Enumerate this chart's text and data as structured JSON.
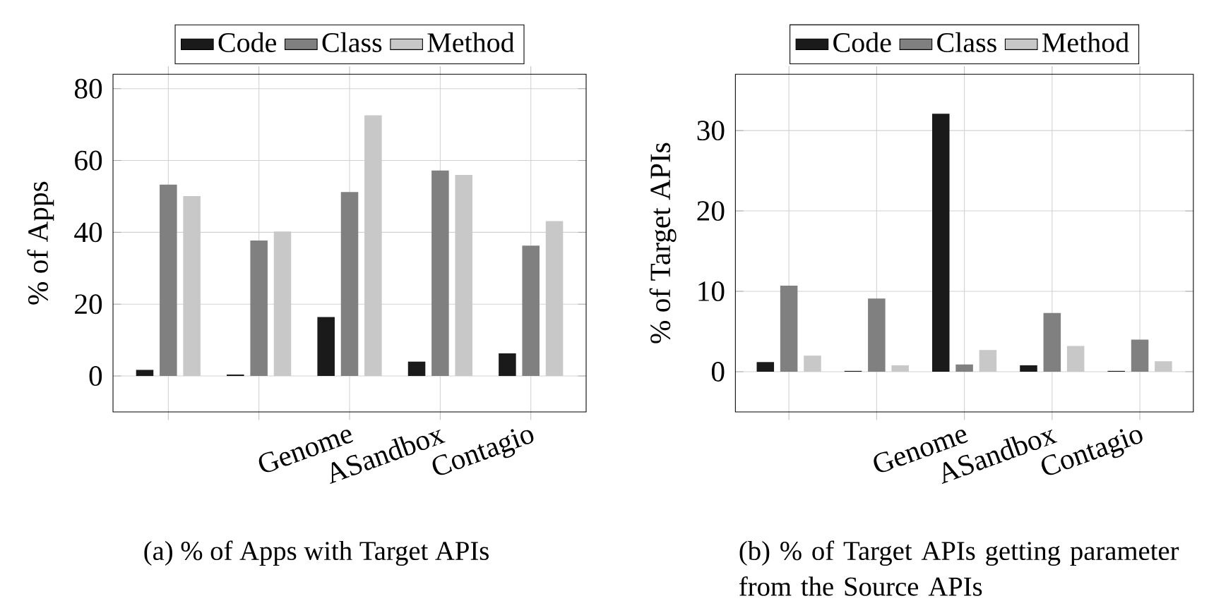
{
  "chart_data": [
    {
      "type": "bar",
      "categories": [
        null,
        null,
        "Genome",
        "ASandbox",
        "Contagio"
      ],
      "ylabel": "% of Apps",
      "ylim": [
        -10,
        84
      ],
      "yticks": [
        0,
        20,
        40,
        60,
        80
      ],
      "grid": true,
      "legend": "top",
      "annotations": [
        "(a) % of Apps with Target APIs"
      ],
      "series": [
        {
          "name": "Code",
          "color": "#1a1a1a",
          "values": [
            1.7,
            0.4,
            16.4,
            4.0,
            6.3
          ]
        },
        {
          "name": "Class",
          "color": "#808080",
          "values": [
            53.3,
            37.7,
            51.2,
            57.2,
            36.3
          ]
        },
        {
          "name": "Method",
          "color": "#c8c8c8",
          "values": [
            50.1,
            40.2,
            72.6,
            56.0,
            43.1
          ]
        }
      ]
    },
    {
      "type": "bar",
      "categories": [
        null,
        null,
        "Genome",
        "ASandbox",
        "Contagio"
      ],
      "ylabel": "% of Target APIs",
      "ylim": [
        -5,
        37
      ],
      "yticks": [
        0,
        10,
        20,
        30
      ],
      "grid": true,
      "legend": "top",
      "annotations": [
        "(b) % of Target APIs getting parameter from the Source APIs"
      ],
      "series": [
        {
          "name": "Code",
          "color": "#1a1a1a",
          "values": [
            1.2,
            0.1,
            32.1,
            0.8,
            0.1
          ]
        },
        {
          "name": "Class",
          "color": "#808080",
          "values": [
            10.7,
            9.1,
            0.9,
            7.3,
            4.0
          ]
        },
        {
          "name": "Method",
          "color": "#c8c8c8",
          "values": [
            2.0,
            0.8,
            2.7,
            3.2,
            1.3
          ]
        }
      ]
    }
  ]
}
